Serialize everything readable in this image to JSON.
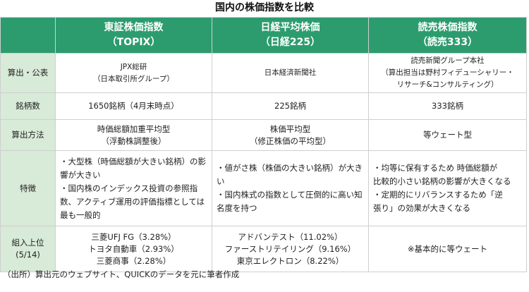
{
  "title": "国内の株価指数を比較",
  "headers": {
    "topix": [
      "東証株価指数",
      "（TOPIX）"
    ],
    "nikkei": [
      "日経平均株価",
      "（日経225）"
    ],
    "yomiuri": [
      "読売株価指数",
      "（読売333）"
    ]
  },
  "rows": {
    "calc": {
      "label": "算出・公表",
      "topix": [
        "JPX総研",
        "（日本取引所グループ）"
      ],
      "nikkei": [
        "日本経済新聞社"
      ],
      "yomiuri": [
        "読売新聞グループ本社",
        "（算出担当は野村フィデューシャリー・",
        "リサーチ&コンサルティング）"
      ]
    },
    "count": {
      "label": "銘柄数",
      "topix": "1650銘柄（4月末時点）",
      "nikkei": "225銘柄",
      "yomiuri": "333銘柄"
    },
    "method": {
      "label": "算出方法",
      "topix": [
        "時価総額加重平均型",
        "（浮動株調整後）"
      ],
      "nikkei": [
        "株価平均型",
        "（修正株価の平均型）"
      ],
      "yomiuri": [
        "等ウェート型"
      ]
    },
    "feature": {
      "label": "特徴",
      "topix": [
        "・大型株（時価総額が大きい銘柄）の影",
        "響が大きい",
        "・国内株のインデックス投資の参照指",
        "数、アクティブ運用の評価指標としては",
        "最も一般的"
      ],
      "nikkei": [
        "・値がさ株（株価の大きい銘柄）が大き",
        "い",
        "・国内株式の指数として圧倒的に高い知",
        "名度を持つ"
      ],
      "yomiuri": [
        "・均等に保有するため 時価総額が",
        "比較的小さい銘柄の影響が大きくなる",
        "・定期的にリバランスするため「逆",
        "張り」の効果が大きくなる"
      ]
    },
    "top": {
      "label": [
        "組入上位",
        "(5/14)"
      ],
      "topix": [
        "三菱UFJ FG（3.28%）",
        "トヨタ自動車（2.93%）",
        "三菱商事（2.28%）"
      ],
      "nikkei": [
        "アドバンテスト（11.02%）",
        "ファーストリテイリング（9.16%）",
        "東京エレクトロン（8.22%）"
      ],
      "yomiuri": [
        "※基本的に等ウェート"
      ]
    }
  },
  "footer": "（出所）算出元のウェブサイト、QUICKのデータを元に筆者作成",
  "colors": {
    "header_bg": "#2c9c6e",
    "label_bg": "#d8ead8",
    "border": "#cfcfcf"
  }
}
